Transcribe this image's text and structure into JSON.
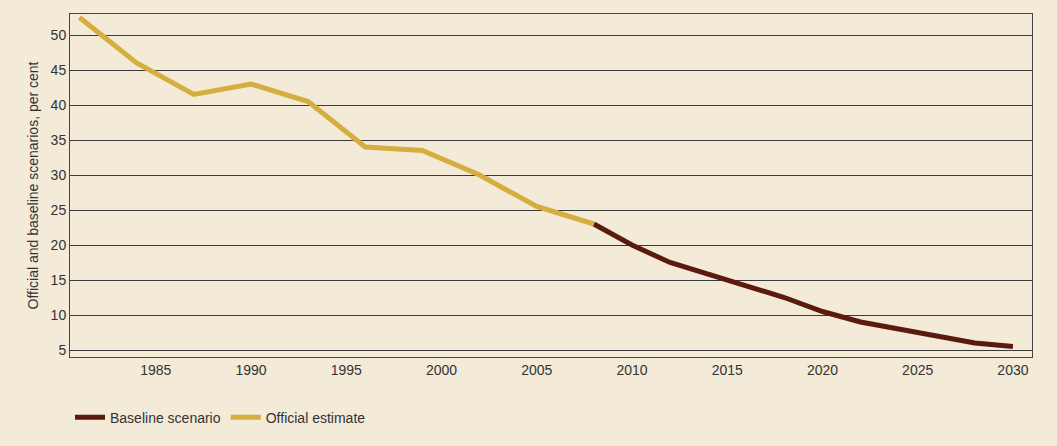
{
  "chart_data": {
    "type": "line",
    "y_label": "Official and baseline scenarios, per cent",
    "x": [
      1981,
      1984,
      1987,
      1990,
      1993,
      1996,
      1999,
      2002,
      2005,
      2008,
      2010,
      2012,
      2015,
      2018,
      2020,
      2022,
      2025,
      2028,
      2030
    ],
    "series": [
      {
        "name": "Baseline scenario",
        "color": "#5b1a10",
        "values": [
          null,
          null,
          null,
          null,
          null,
          null,
          null,
          null,
          null,
          23,
          20,
          17.5,
          15,
          12.5,
          10.5,
          9,
          7.5,
          6,
          5.5
        ]
      },
      {
        "name": "Official estimate",
        "color": "#d6ad3f",
        "values": [
          52.5,
          46,
          41.5,
          43,
          40.5,
          34,
          33.5,
          30,
          25.5,
          23,
          null,
          null,
          null,
          null,
          null,
          null,
          null,
          null,
          null
        ]
      }
    ],
    "xlim": [
      1980.5,
      2031
    ],
    "xticks": [
      1985,
      1990,
      1995,
      2000,
      2005,
      2010,
      2015,
      2020,
      2025,
      2030
    ],
    "ylim": [
      4,
      53
    ],
    "yticks": [
      5,
      10,
      15,
      20,
      25,
      30,
      35,
      40,
      45,
      50
    ],
    "grid": true,
    "legend": "bottom left"
  }
}
